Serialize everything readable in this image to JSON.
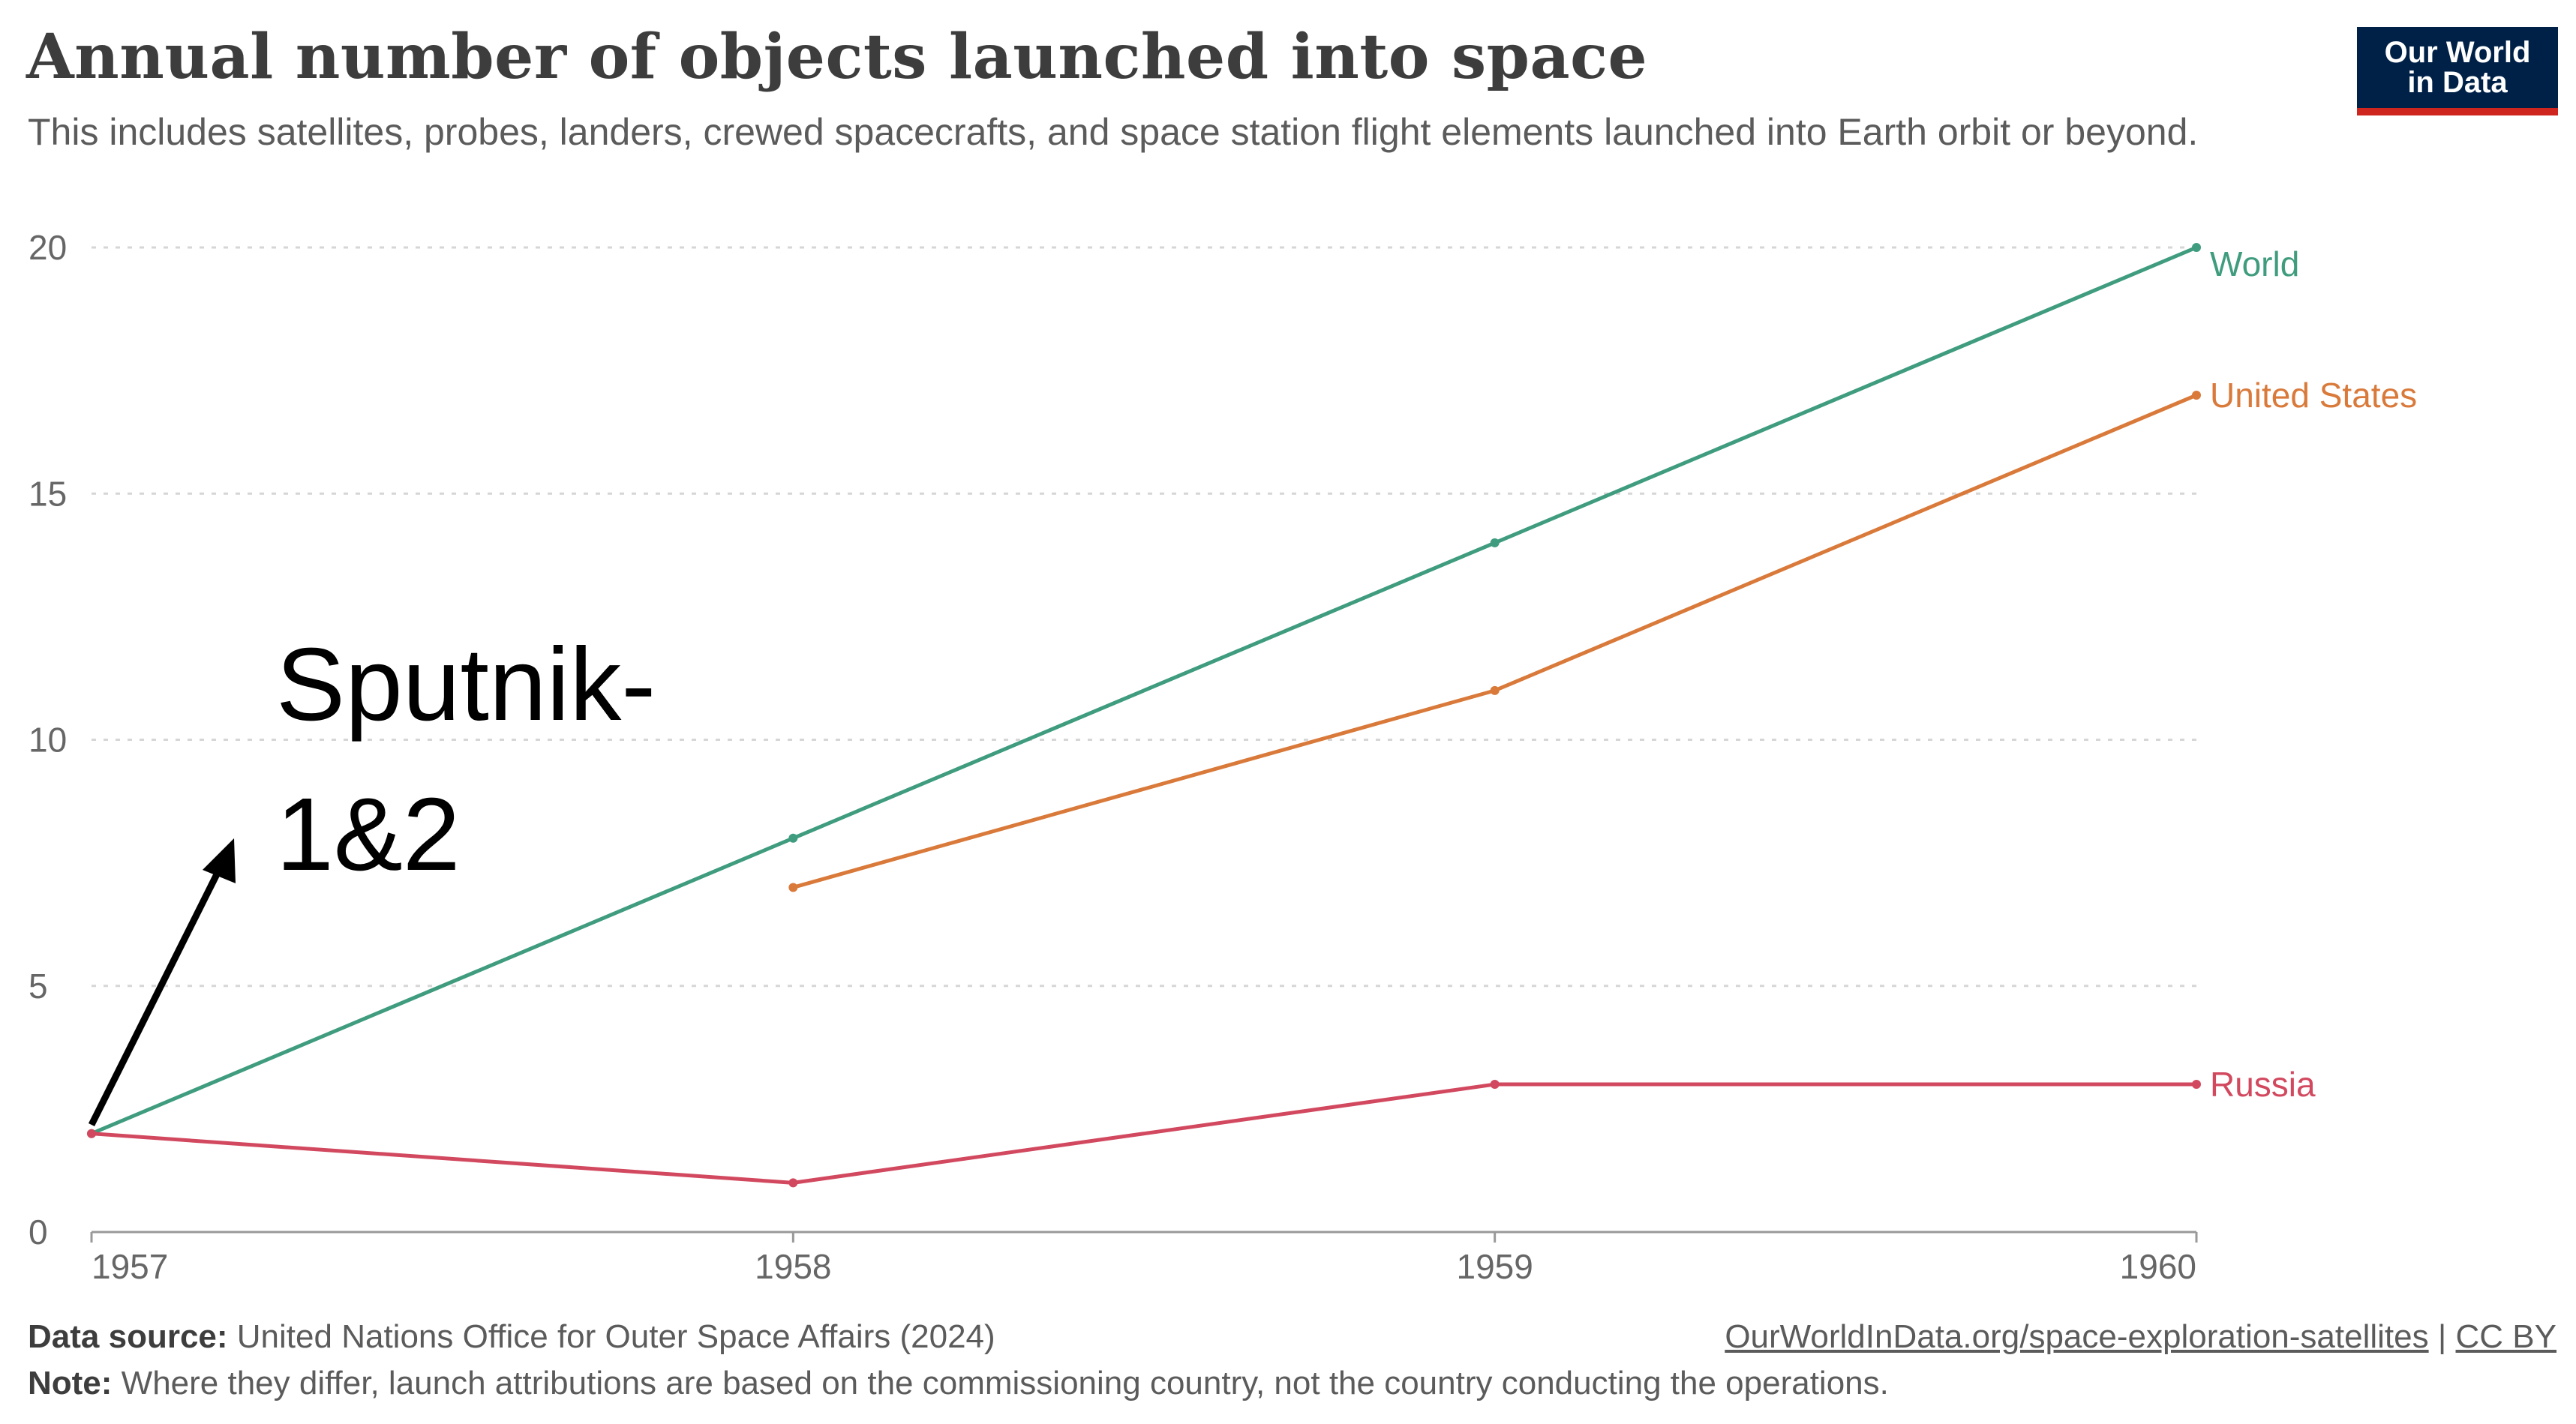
{
  "header": {
    "title": "Annual number of objects launched into space",
    "subtitle": "This includes satellites, probes, landers, crewed spacecrafts, and space station flight elements launched into Earth orbit or beyond.",
    "logo_line1": "Our World",
    "logo_line2": "in Data"
  },
  "chart_data": {
    "type": "line",
    "x": [
      1957,
      1958,
      1959,
      1960
    ],
    "ylim": [
      0,
      20
    ],
    "xlim": [
      1957,
      1960
    ],
    "yticks": [
      0,
      5,
      10,
      15,
      20
    ],
    "ytick_labels": [
      "0",
      "5",
      "10",
      "15",
      "20"
    ],
    "xtick_labels": [
      "1957",
      "1958",
      "1959",
      "1960"
    ],
    "grid": "horizontal-dotted",
    "legend": "inline labels at line ends",
    "series": [
      {
        "name": "World",
        "color": "#3f9c7e",
        "points": [
          [
            1957,
            2
          ],
          [
            1958,
            8
          ],
          [
            1959,
            14
          ],
          [
            1960,
            20
          ]
        ]
      },
      {
        "name": "United States",
        "color": "#d97a3b",
        "points": [
          [
            1958,
            7
          ],
          [
            1959,
            11
          ],
          [
            1960,
            17
          ]
        ]
      },
      {
        "name": "Russia",
        "color": "#d2495f",
        "points": [
          [
            1957,
            2
          ],
          [
            1958,
            1
          ],
          [
            1959,
            3
          ],
          [
            1960,
            3
          ]
        ]
      }
    ],
    "annotation": {
      "line1": "Sputnik-",
      "line2": "1&2"
    }
  },
  "footer": {
    "source_label": "Data source:",
    "source_text": "United Nations Office for Outer Space Affairs (2024)",
    "note_label": "Note:",
    "note_text": "Where they differ, launch attributions are based on the commissioning country, not the country conducting the operations.",
    "link_text": "OurWorldInData.org/space-exploration-satellites",
    "separator": "|",
    "license": "CC BY"
  }
}
